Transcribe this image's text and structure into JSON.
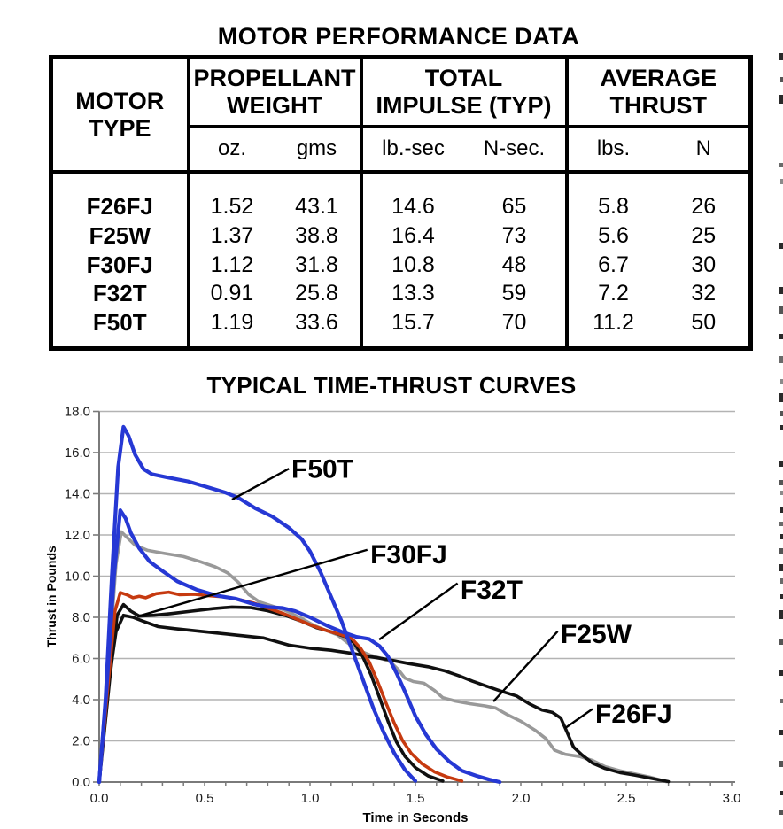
{
  "page": {
    "edge_marks": [
      [
        60,
        8,
        4,
        "#2a2a2a"
      ],
      [
        87,
        6,
        3,
        "#555555"
      ],
      [
        107,
        10,
        4,
        "#2a2a2a"
      ],
      [
        184,
        5,
        5,
        "#6a6a6a"
      ],
      [
        202,
        6,
        3,
        "#8a8a8a"
      ],
      [
        274,
        7,
        4,
        "#2a2a2a"
      ],
      [
        324,
        8,
        5,
        "#2a2a2a"
      ],
      [
        345,
        9,
        4,
        "#555555"
      ],
      [
        377,
        6,
        4,
        "#2a2a2a"
      ],
      [
        402,
        8,
        5,
        "#6a6a6a"
      ],
      [
        428,
        5,
        3,
        "#8a8a8a"
      ],
      [
        444,
        10,
        5,
        "#2a2a2a"
      ],
      [
        464,
        6,
        3,
        "#555555"
      ],
      [
        480,
        5,
        3,
        "#2a2a2a"
      ],
      [
        520,
        7,
        4,
        "#2a2a2a"
      ],
      [
        542,
        6,
        5,
        "#555555"
      ],
      [
        554,
        5,
        3,
        "#8a8a8a"
      ],
      [
        573,
        6,
        3,
        "#2a2a2a"
      ],
      [
        589,
        5,
        4,
        "#6a6a6a"
      ],
      [
        603,
        6,
        3,
        "#2a2a2a"
      ],
      [
        619,
        7,
        4,
        "#555555"
      ],
      [
        637,
        8,
        5,
        "#2a2a2a"
      ],
      [
        653,
        6,
        3,
        "#6a6a6a"
      ],
      [
        671,
        5,
        3,
        "#2a2a2a"
      ],
      [
        689,
        10,
        5,
        "#2a2a2a"
      ],
      [
        722,
        6,
        4,
        "#555555"
      ],
      [
        756,
        7,
        4,
        "#2a2a2a"
      ],
      [
        789,
        5,
        3,
        "#6a6a6a"
      ],
      [
        824,
        6,
        4,
        "#2a2a2a"
      ],
      [
        859,
        7,
        4,
        "#555555"
      ],
      [
        893,
        5,
        3,
        "#2a2a2a"
      ],
      [
        914,
        6,
        4,
        "#555555"
      ]
    ]
  },
  "table": {
    "title": "MOTOR PERFORMANCE DATA",
    "col_groups": [
      {
        "label": "MOTOR TYPE",
        "lines": [
          "MOTOR",
          "TYPE"
        ],
        "units": []
      },
      {
        "label": "PROPELLANT WEIGHT",
        "lines": [
          "PROPELLANT",
          "WEIGHT"
        ],
        "units": [
          "oz.",
          "gms"
        ]
      },
      {
        "label": "TOTAL IMPULSE (TYP)",
        "lines": [
          "TOTAL",
          "IMPULSE (TYP)"
        ],
        "units": [
          "lb.-sec",
          "N-sec."
        ]
      },
      {
        "label": "AVERAGE THRUST",
        "lines": [
          "AVERAGE",
          "THRUST"
        ],
        "units": [
          "lbs.",
          "N"
        ]
      }
    ],
    "rows": [
      {
        "motor": "F26FJ",
        "values": [
          "1.52",
          "43.1",
          "14.6",
          "65",
          "5.8",
          "26"
        ]
      },
      {
        "motor": "F25W",
        "values": [
          "1.37",
          "38.8",
          "16.4",
          "73",
          "5.6",
          "25"
        ]
      },
      {
        "motor": "F30FJ",
        "values": [
          "1.12",
          "31.8",
          "10.8",
          "48",
          "6.7",
          "30"
        ]
      },
      {
        "motor": "F32T",
        "values": [
          "0.91",
          "25.8",
          "13.3",
          "59",
          "7.2",
          "32"
        ]
      },
      {
        "motor": "F50T",
        "values": [
          "1.19",
          "33.6",
          "15.7",
          "70",
          "11.2",
          "50"
        ]
      }
    ]
  },
  "chart_data": {
    "type": "line",
    "title": "TYPICAL TIME-THRUST CURVES",
    "xlabel": "Time in Seconds",
    "ylabel": "Thrust in Pounds",
    "xlim": [
      0,
      3.0
    ],
    "ylim": [
      0,
      18.0
    ],
    "x_tick_labels": [
      "0.0",
      "0.5",
      "1.0",
      "1.5",
      "2.0",
      "2.5",
      "3.0"
    ],
    "x_minor_tick_step": 0.1,
    "y_tick_labels": [
      "0.0",
      "2.0",
      "4.0",
      "6.0",
      "8.0",
      "10.0",
      "12.0",
      "14.0",
      "16.0",
      "18.0"
    ],
    "grid": "horizontal",
    "grid_color": "#b3b3b3",
    "axis_color": "#7a7a7a",
    "legend_position": "inline-callouts",
    "colors": {
      "blue": "#2638d4",
      "red": "#c63a10",
      "gray": "#999999",
      "black": "#101010"
    },
    "series": [
      {
        "name": "F25W",
        "color": "#999999",
        "width": 3.6,
        "points": [
          [
            0,
            0
          ],
          [
            0.04,
            5.0
          ],
          [
            0.08,
            10.6
          ],
          [
            0.105,
            12.15
          ],
          [
            0.13,
            11.9
          ],
          [
            0.17,
            11.5
          ],
          [
            0.23,
            11.25
          ],
          [
            0.31,
            11.1
          ],
          [
            0.4,
            10.95
          ],
          [
            0.48,
            10.7
          ],
          [
            0.55,
            10.45
          ],
          [
            0.61,
            10.15
          ],
          [
            0.66,
            9.7
          ],
          [
            0.71,
            9.1
          ],
          [
            0.76,
            8.75
          ],
          [
            0.82,
            8.55
          ],
          [
            0.88,
            8.35
          ],
          [
            0.95,
            8.0
          ],
          [
            1.02,
            7.6
          ],
          [
            1.08,
            7.35
          ],
          [
            1.13,
            7.15
          ],
          [
            1.18,
            6.75
          ],
          [
            1.23,
            6.4
          ],
          [
            1.29,
            6.15
          ],
          [
            1.34,
            6.0
          ],
          [
            1.38,
            5.85
          ],
          [
            1.42,
            5.45
          ],
          [
            1.45,
            5.05
          ],
          [
            1.49,
            4.88
          ],
          [
            1.54,
            4.8
          ],
          [
            1.59,
            4.45
          ],
          [
            1.63,
            4.1
          ],
          [
            1.69,
            3.93
          ],
          [
            1.76,
            3.8
          ],
          [
            1.83,
            3.7
          ],
          [
            1.88,
            3.6
          ],
          [
            1.94,
            3.25
          ],
          [
            2.0,
            2.95
          ],
          [
            2.07,
            2.5
          ],
          [
            2.12,
            2.1
          ],
          [
            2.16,
            1.55
          ],
          [
            2.21,
            1.35
          ],
          [
            2.28,
            1.24
          ],
          [
            2.34,
            1.05
          ],
          [
            2.4,
            0.75
          ],
          [
            2.47,
            0.55
          ],
          [
            2.54,
            0.4
          ],
          [
            2.61,
            0.25
          ],
          [
            2.69,
            0.02
          ]
        ]
      },
      {
        "name": "F26FJ",
        "color": "#101010",
        "width": 3.6,
        "points": [
          [
            0,
            0
          ],
          [
            0.04,
            4.5
          ],
          [
            0.08,
            7.3
          ],
          [
            0.115,
            8.1
          ],
          [
            0.16,
            8.0
          ],
          [
            0.21,
            7.8
          ],
          [
            0.28,
            7.55
          ],
          [
            0.36,
            7.45
          ],
          [
            0.5,
            7.3
          ],
          [
            0.64,
            7.15
          ],
          [
            0.78,
            7.0
          ],
          [
            0.9,
            6.65
          ],
          [
            1.0,
            6.5
          ],
          [
            1.1,
            6.4
          ],
          [
            1.2,
            6.25
          ],
          [
            1.28,
            6.1
          ],
          [
            1.37,
            5.95
          ],
          [
            1.47,
            5.75
          ],
          [
            1.56,
            5.6
          ],
          [
            1.64,
            5.4
          ],
          [
            1.71,
            5.15
          ],
          [
            1.77,
            4.9
          ],
          [
            1.84,
            4.65
          ],
          [
            1.91,
            4.4
          ],
          [
            1.98,
            4.18
          ],
          [
            2.04,
            3.8
          ],
          [
            2.1,
            3.5
          ],
          [
            2.15,
            3.38
          ],
          [
            2.19,
            3.1
          ],
          [
            2.22,
            2.4
          ],
          [
            2.25,
            1.7
          ],
          [
            2.29,
            1.32
          ],
          [
            2.34,
            0.92
          ],
          [
            2.4,
            0.66
          ],
          [
            2.47,
            0.46
          ],
          [
            2.54,
            0.34
          ],
          [
            2.61,
            0.2
          ],
          [
            2.7,
            0.02
          ]
        ]
      },
      {
        "name": "F30FJ",
        "color": "#101010",
        "width": 3.6,
        "points": [
          [
            0,
            0
          ],
          [
            0.05,
            5.0
          ],
          [
            0.085,
            8.1
          ],
          [
            0.115,
            8.62
          ],
          [
            0.15,
            8.3
          ],
          [
            0.19,
            8.06
          ],
          [
            0.26,
            8.1
          ],
          [
            0.34,
            8.18
          ],
          [
            0.44,
            8.3
          ],
          [
            0.54,
            8.42
          ],
          [
            0.63,
            8.5
          ],
          [
            0.72,
            8.47
          ],
          [
            0.8,
            8.32
          ],
          [
            0.88,
            8.1
          ],
          [
            0.95,
            7.85
          ],
          [
            1.03,
            7.5
          ],
          [
            1.1,
            7.3
          ],
          [
            1.17,
            7.05
          ],
          [
            1.21,
            6.75
          ],
          [
            1.25,
            6.1
          ],
          [
            1.29,
            5.2
          ],
          [
            1.33,
            4.1
          ],
          [
            1.37,
            2.95
          ],
          [
            1.41,
            1.95
          ],
          [
            1.45,
            1.25
          ],
          [
            1.5,
            0.7
          ],
          [
            1.56,
            0.3
          ],
          [
            1.63,
            0.05
          ]
        ]
      },
      {
        "name": "unlabeled-red",
        "color": "#c63a10",
        "width": 3.6,
        "points": [
          [
            0,
            0
          ],
          [
            0.04,
            4.5
          ],
          [
            0.075,
            8.3
          ],
          [
            0.1,
            9.2
          ],
          [
            0.13,
            9.1
          ],
          [
            0.16,
            8.95
          ],
          [
            0.19,
            9.02
          ],
          [
            0.22,
            8.95
          ],
          [
            0.27,
            9.15
          ],
          [
            0.33,
            9.22
          ],
          [
            0.38,
            9.1
          ],
          [
            0.45,
            9.12
          ],
          [
            0.52,
            9.05
          ],
          [
            0.59,
            9.0
          ],
          [
            0.66,
            8.87
          ],
          [
            0.73,
            8.7
          ],
          [
            0.8,
            8.45
          ],
          [
            0.87,
            8.2
          ],
          [
            0.94,
            7.9
          ],
          [
            1.01,
            7.6
          ],
          [
            1.08,
            7.35
          ],
          [
            1.15,
            7.15
          ],
          [
            1.2,
            6.95
          ],
          [
            1.24,
            6.5
          ],
          [
            1.28,
            5.85
          ],
          [
            1.32,
            4.9
          ],
          [
            1.36,
            3.85
          ],
          [
            1.4,
            2.85
          ],
          [
            1.44,
            2.0
          ],
          [
            1.48,
            1.4
          ],
          [
            1.53,
            0.9
          ],
          [
            1.59,
            0.5
          ],
          [
            1.65,
            0.25
          ],
          [
            1.72,
            0.05
          ]
        ]
      },
      {
        "name": "F32T",
        "color": "#2638d4",
        "width": 4.2,
        "points": [
          [
            0,
            0
          ],
          [
            0.035,
            4.5
          ],
          [
            0.07,
            10.0
          ],
          [
            0.1,
            13.2
          ],
          [
            0.125,
            12.8
          ],
          [
            0.15,
            12.1
          ],
          [
            0.19,
            11.35
          ],
          [
            0.24,
            10.7
          ],
          [
            0.3,
            10.25
          ],
          [
            0.37,
            9.75
          ],
          [
            0.46,
            9.35
          ],
          [
            0.56,
            9.05
          ],
          [
            0.65,
            8.9
          ],
          [
            0.73,
            8.65
          ],
          [
            0.8,
            8.5
          ],
          [
            0.87,
            8.45
          ],
          [
            0.93,
            8.3
          ],
          [
            1.0,
            8.0
          ],
          [
            1.08,
            7.6
          ],
          [
            1.15,
            7.3
          ],
          [
            1.22,
            7.05
          ],
          [
            1.28,
            6.95
          ],
          [
            1.33,
            6.6
          ],
          [
            1.37,
            6.1
          ],
          [
            1.41,
            5.3
          ],
          [
            1.45,
            4.4
          ],
          [
            1.5,
            3.2
          ],
          [
            1.55,
            2.3
          ],
          [
            1.6,
            1.6
          ],
          [
            1.66,
            1.0
          ],
          [
            1.72,
            0.55
          ],
          [
            1.79,
            0.3
          ],
          [
            1.85,
            0.12
          ],
          [
            1.9,
            0
          ]
        ]
      },
      {
        "name": "F50T",
        "color": "#2638d4",
        "width": 4.2,
        "points": [
          [
            0,
            0
          ],
          [
            0.03,
            4.0
          ],
          [
            0.06,
            10.0
          ],
          [
            0.09,
            15.3
          ],
          [
            0.115,
            17.25
          ],
          [
            0.14,
            16.8
          ],
          [
            0.17,
            15.9
          ],
          [
            0.21,
            15.2
          ],
          [
            0.25,
            14.95
          ],
          [
            0.32,
            14.8
          ],
          [
            0.42,
            14.6
          ],
          [
            0.52,
            14.3
          ],
          [
            0.6,
            14.05
          ],
          [
            0.66,
            13.8
          ],
          [
            0.74,
            13.3
          ],
          [
            0.82,
            12.9
          ],
          [
            0.9,
            12.35
          ],
          [
            0.96,
            11.8
          ],
          [
            1.0,
            11.2
          ],
          [
            1.05,
            10.2
          ],
          [
            1.1,
            9.0
          ],
          [
            1.15,
            7.8
          ],
          [
            1.2,
            6.4
          ],
          [
            1.25,
            5.0
          ],
          [
            1.3,
            3.6
          ],
          [
            1.35,
            2.4
          ],
          [
            1.4,
            1.4
          ],
          [
            1.45,
            0.6
          ],
          [
            1.5,
            0.05
          ]
        ]
      }
    ],
    "annotations": [
      {
        "label": "F50T",
        "text_t": 0.912,
        "text_v": 15.9,
        "line": [
          [
            0.63,
            13.72
          ],
          [
            0.9,
            15.22
          ]
        ]
      },
      {
        "label": "F30FJ",
        "text_t": 1.286,
        "text_v": 11.74,
        "line": [
          [
            0.181,
            8.04
          ],
          [
            1.272,
            11.28
          ]
        ]
      },
      {
        "label": "F32T",
        "text_t": 1.714,
        "text_v": 10.02,
        "line": [
          [
            1.328,
            6.92
          ],
          [
            1.7,
            9.65
          ]
        ]
      },
      {
        "label": "F25W",
        "text_t": 2.189,
        "text_v": 7.87,
        "line": [
          [
            1.87,
            3.91
          ],
          [
            2.175,
            7.32
          ]
        ]
      },
      {
        "label": "F26FJ",
        "text_t": 2.353,
        "text_v": 4.0,
        "line": [
          [
            2.21,
            2.62
          ],
          [
            2.34,
            3.55
          ]
        ]
      }
    ]
  }
}
